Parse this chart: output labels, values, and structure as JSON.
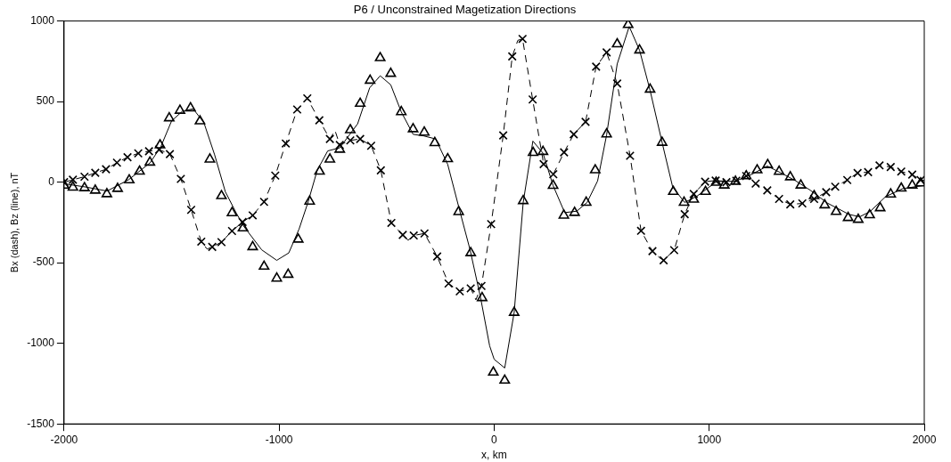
{
  "chart_data": {
    "type": "line",
    "title": "P6 / Unconstrained Magetization Directions",
    "xlabel": "x, km",
    "ylabel": "Bx (dash), Bz (line), nT",
    "xlim": [
      -2000,
      2000
    ],
    "xticks": [
      -2000,
      -1000,
      0,
      1000,
      2000
    ],
    "ylim": [
      -1500,
      1000
    ],
    "yticks": [
      -1500,
      -1000,
      -500,
      0,
      500,
      1000
    ],
    "grid": false,
    "legend": false,
    "series": [
      {
        "type": "line",
        "line_style": "dashed",
        "marker": "none",
        "color": "#000000",
        "x": [
          -2000,
          -1959,
          -1905,
          -1855,
          -1805,
          -1754,
          -1705,
          -1655,
          -1605,
          -1558,
          -1508,
          -1457,
          -1409,
          -1362,
          -1335,
          -1311,
          -1268,
          -1219,
          -1170,
          -1123,
          -1070,
          -1018,
          -969,
          -916,
          -869,
          -813,
          -764,
          -740,
          -718,
          -669,
          -623,
          -572,
          -527,
          -478,
          -425,
          -400,
          -374,
          -324,
          -265,
          -212,
          -160,
          -109,
          -85,
          -59,
          -14,
          42,
          84,
          110,
          132,
          179,
          230,
          260,
          275,
          325,
          370,
          425,
          474,
          523,
          572,
          632,
          683,
          736,
          770,
          788,
          837,
          886,
          928,
          981,
          1030,
          1080,
          1126,
          1172,
          1216,
          1270,
          1325,
          1377,
          1433,
          1488,
          1544,
          1586,
          1642,
          1690,
          1739,
          1792,
          1844,
          1893,
          1944,
          1983,
          2000
        ],
        "values": [
          0,
          15,
          34,
          58,
          80,
          121,
          155,
          179,
          192,
          202,
          174,
          20,
          -172,
          -369,
          -415,
          -402,
          -372,
          -303,
          -247,
          -206,
          -122,
          41,
          240,
          451,
          520,
          384,
          268,
          320,
          231,
          259,
          268,
          226,
          73,
          -253,
          -327,
          -360,
          -331,
          -318,
          -461,
          -629,
          -677,
          -659,
          -730,
          -644,
          -260,
          290,
          780,
          880,
          889,
          513,
          112,
          70,
          49,
          185,
          297,
          374,
          717,
          805,
          612,
          164,
          -302,
          -428,
          -470,
          -485,
          -422,
          -199,
          -73,
          3,
          10,
          0,
          9,
          38,
          -9,
          -51,
          -104,
          -138,
          -132,
          -104,
          -62,
          -28,
          13,
          57,
          62,
          104,
          94,
          66,
          47,
          13,
          10
        ]
      },
      {
        "type": "line",
        "line_style": "solid",
        "marker": "none",
        "color": "#000000",
        "x": [
          -2000,
          -1900,
          -1800,
          -1700,
          -1600,
          -1550,
          -1500,
          -1450,
          -1400,
          -1350,
          -1300,
          -1250,
          -1200,
          -1165,
          -1081,
          -1011,
          -955,
          -907,
          -865,
          -823,
          -774,
          -718,
          -635,
          -579,
          -530,
          -481,
          -432,
          -377,
          -328,
          -272,
          -216,
          -160,
          -112,
          -63,
          -21,
          0,
          49,
          93,
          135,
          180,
          227,
          274,
          328,
          384,
          432,
          481,
          523,
          572,
          628,
          676,
          725,
          781,
          830,
          886,
          942,
          990,
          1039,
          1120,
          1200,
          1270,
          1330,
          1400,
          1470,
          1550,
          1650,
          1700,
          1750,
          1820,
          1900,
          2000
        ],
        "values": [
          -10,
          -30,
          -55,
          15,
          120,
          220,
          380,
          440,
          455,
          370,
          170,
          -60,
          -190,
          -273,
          -420,
          -485,
          -439,
          -290,
          -122,
          73,
          194,
          213,
          362,
          585,
          660,
          604,
          436,
          297,
          287,
          268,
          110,
          -178,
          -420,
          -718,
          -1016,
          -1099,
          -1153,
          -809,
          -126,
          255,
          180,
          -21,
          -189,
          -180,
          -126,
          8,
          294,
          733,
          966,
          819,
          570,
          246,
          -30,
          -126,
          -88,
          -40,
          8,
          5,
          50,
          100,
          60,
          10,
          -50,
          -130,
          -200,
          -215,
          -180,
          -90,
          -40,
          -20
        ]
      },
      {
        "type": "scatter",
        "marker": "cross",
        "color": "#000000",
        "x": [
          -2000,
          -1959,
          -1905,
          -1855,
          -1805,
          -1754,
          -1705,
          -1655,
          -1605,
          -1558,
          -1508,
          -1457,
          -1409,
          -1362,
          -1311,
          -1268,
          -1219,
          -1170,
          -1123,
          -1070,
          -1018,
          -969,
          -916,
          -869,
          -813,
          -764,
          -718,
          -669,
          -623,
          -572,
          -527,
          -478,
          -425,
          -374,
          -324,
          -265,
          -212,
          -160,
          -109,
          -59,
          -14,
          42,
          84,
          132,
          179,
          230,
          275,
          325,
          370,
          425,
          474,
          523,
          572,
          632,
          683,
          736,
          788,
          837,
          886,
          928,
          981,
          1030,
          1080,
          1126,
          1172,
          1216,
          1270,
          1325,
          1377,
          1433,
          1488,
          1544,
          1586,
          1642,
          1690,
          1739,
          1792,
          1844,
          1893,
          1944,
          1983
        ],
        "values": [
          0,
          15,
          34,
          58,
          80,
          121,
          155,
          179,
          192,
          202,
          174,
          20,
          -172,
          -369,
          -402,
          -372,
          -303,
          -247,
          -206,
          -122,
          41,
          240,
          451,
          520,
          384,
          268,
          231,
          259,
          268,
          226,
          73,
          -253,
          -327,
          -331,
          -318,
          -461,
          -629,
          -677,
          -659,
          -644,
          -260,
          290,
          780,
          889,
          513,
          112,
          49,
          185,
          297,
          374,
          717,
          805,
          612,
          164,
          -302,
          -428,
          -485,
          -422,
          -199,
          -73,
          3,
          10,
          0,
          9,
          38,
          -9,
          -51,
          -104,
          -138,
          -132,
          -104,
          -62,
          -28,
          13,
          57,
          62,
          104,
          94,
          66,
          47,
          13
        ]
      },
      {
        "type": "scatter",
        "marker": "triangle",
        "color": "#000000",
        "x": [
          -2000,
          -1959,
          -1905,
          -1855,
          -1801,
          -1751,
          -1697,
          -1649,
          -1601,
          -1554,
          -1511,
          -1461,
          -1412,
          -1368,
          -1322,
          -1268,
          -1219,
          -1168,
          -1123,
          -1070,
          -1011,
          -958,
          -911,
          -858,
          -812,
          -764,
          -718,
          -669,
          -623,
          -577,
          -530,
          -481,
          -432,
          -377,
          -325,
          -276,
          -216,
          -165,
          -109,
          -56,
          -4,
          49,
          93,
          135,
          181,
          227,
          274,
          324,
          374,
          428,
          470,
          523,
          572,
          623,
          676,
          725,
          781,
          833,
          883,
          928,
          983,
          1032,
          1070,
          1122,
          1172,
          1223,
          1272,
          1325,
          1377,
          1426,
          1488,
          1537,
          1590,
          1646,
          1693,
          1746,
          1795,
          1844,
          1893,
          1944,
          1983
        ],
        "values": [
          -20,
          -32,
          -36,
          -51,
          -73,
          -40,
          13,
          67,
          123,
          230,
          398,
          445,
          460,
          379,
          142,
          -85,
          -191,
          -285,
          -402,
          -523,
          -597,
          -573,
          -355,
          -119,
          67,
          142,
          203,
          324,
          488,
          631,
          771,
          674,
          436,
          330,
          309,
          244,
          144,
          -184,
          -439,
          -718,
          -1180,
          -1230,
          -809,
          -116,
          183,
          189,
          -21,
          -206,
          -189,
          -126,
          75,
          298,
          857,
          977,
          819,
          576,
          246,
          -59,
          -126,
          -107,
          -59,
          -2,
          -19,
          4,
          38,
          75,
          108,
          66,
          32,
          -19,
          -85,
          -142,
          -183,
          -221,
          -232,
          -204,
          -160,
          -75,
          -38,
          -19,
          -6
        ]
      }
    ]
  }
}
